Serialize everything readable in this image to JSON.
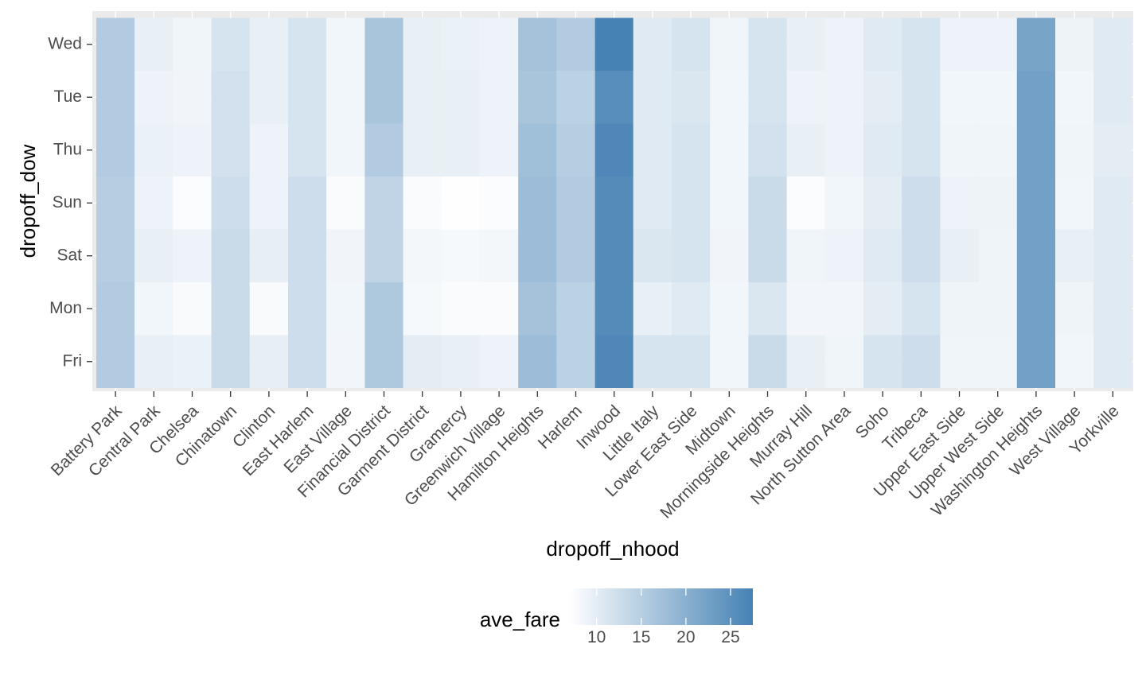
{
  "chart_data": {
    "type": "heatmap",
    "xlabel": "dropoff_nhood",
    "ylabel": "dropoff_dow",
    "x": [
      "Battery Park",
      "Central Park",
      "Chelsea",
      "Chinatown",
      "Clinton",
      "East Harlem",
      "East Village",
      "Financial District",
      "Garment District",
      "Gramercy",
      "Greenwich Village",
      "Hamilton Heights",
      "Harlem",
      "Inwood",
      "Little Italy",
      "Lower East Side",
      "Midtown",
      "Morningside Heights",
      "Murray Hill",
      "North Sutton Area",
      "Soho",
      "Tribeca",
      "Upper East Side",
      "Upper West Side",
      "Washington Heights",
      "West Village",
      "Yorkville"
    ],
    "y": [
      "Fri",
      "Mon",
      "Sat",
      "Sun",
      "Thu",
      "Tue",
      "Wed"
    ],
    "values": [
      [
        15.5,
        9.5,
        9.3,
        13.0,
        9.7,
        12.5,
        8.4,
        16.0,
        10.0,
        9.5,
        9.0,
        18.0,
        14.5,
        26.5,
        11.5,
        11.5,
        8.5,
        13.0,
        9.5,
        8.7,
        11.5,
        12.5,
        8.7,
        8.7,
        22.5,
        8.5,
        10.5
      ],
      [
        15.5,
        8.5,
        7.8,
        13.0,
        7.8,
        12.5,
        8.5,
        16.0,
        8.0,
        7.7,
        7.7,
        17.0,
        14.5,
        26.0,
        9.5,
        10.5,
        8.5,
        11.0,
        8.4,
        8.4,
        10.0,
        11.5,
        8.8,
        8.8,
        22.5,
        8.8,
        10.5
      ],
      [
        15.0,
        9.5,
        9.0,
        13.0,
        9.7,
        12.5,
        8.6,
        14.0,
        8.3,
        8.0,
        8.3,
        18.0,
        15.5,
        26.0,
        11.0,
        11.5,
        8.6,
        13.0,
        8.7,
        9.0,
        10.5,
        12.5,
        9.5,
        8.8,
        22.5,
        9.5,
        10.5
      ],
      [
        15.0,
        9.0,
        7.5,
        12.5,
        9.0,
        12.5,
        7.7,
        14.0,
        7.7,
        7.1,
        7.5,
        18.0,
        15.5,
        26.0,
        10.5,
        11.5,
        8.5,
        13.0,
        7.5,
        8.5,
        10.0,
        12.5,
        9.0,
        8.9,
        22.5,
        8.5,
        10.5
      ],
      [
        15.5,
        9.3,
        9.0,
        12.0,
        9.0,
        11.5,
        8.5,
        15.5,
        9.5,
        9.5,
        9.0,
        17.5,
        15.0,
        26.5,
        10.5,
        11.5,
        8.5,
        12.0,
        9.5,
        9.0,
        10.5,
        11.5,
        8.7,
        8.7,
        22.5,
        8.7,
        10.0
      ],
      [
        15.5,
        9.0,
        8.6,
        12.0,
        9.5,
        11.5,
        8.5,
        16.5,
        9.5,
        9.5,
        9.0,
        16.5,
        14.5,
        25.5,
        10.5,
        11.0,
        8.5,
        11.5,
        9.0,
        9.0,
        10.0,
        11.5,
        8.5,
        8.5,
        22.5,
        8.5,
        10.5
      ],
      [
        15.5,
        9.5,
        8.7,
        11.5,
        9.5,
        11.5,
        8.5,
        16.5,
        9.5,
        9.3,
        9.0,
        17.0,
        15.5,
        27.5,
        10.5,
        11.5,
        8.7,
        11.5,
        9.5,
        9.0,
        10.5,
        11.5,
        9.0,
        9.0,
        22.0,
        8.9,
        10.5
      ]
    ],
    "fill_range": [
      7.0,
      27.5
    ],
    "color_low": "#ffffff",
    "color_high": "#4682b4",
    "panel_background": "#ebebeb",
    "legend": {
      "title": "ave_fare",
      "position": "bottom",
      "breaks": [
        10,
        15,
        20,
        25
      ]
    }
  }
}
